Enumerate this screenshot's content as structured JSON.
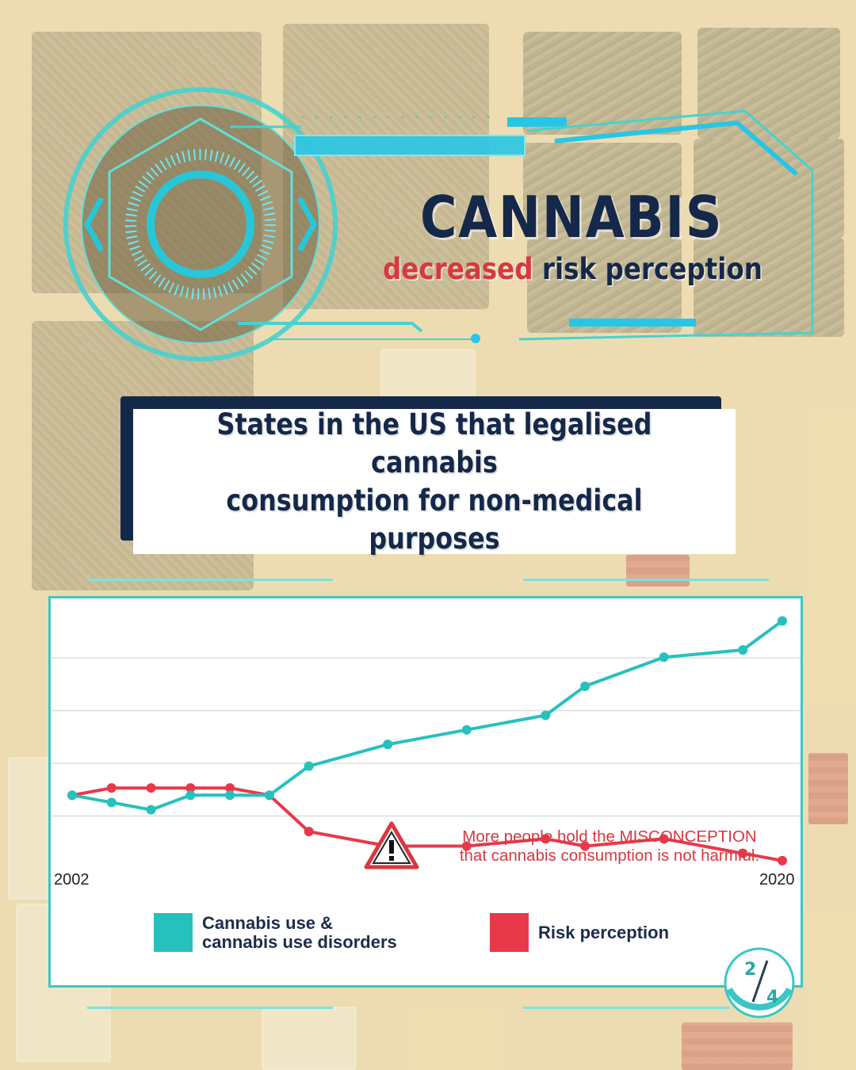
{
  "header": {
    "title": "CANNABIS",
    "subtitle_highlight": "decreased",
    "subtitle_rest": " risk perception"
  },
  "heading": {
    "text": "States in the US that legalised cannabis\nconsumption for non-medical purposes"
  },
  "chart_data": {
    "type": "line",
    "x": [
      2002,
      2003,
      2004,
      2005,
      2006,
      2007,
      2008,
      2010,
      2012,
      2014,
      2015,
      2017,
      2019,
      2020
    ],
    "series": [
      {
        "name": "Cannabis use & cannabis use disorders",
        "color": "#27c1bd",
        "values": [
          0,
          -0.1,
          -0.2,
          0,
          0,
          0,
          0.4,
          0.7,
          0.9,
          1.1,
          1.5,
          1.9,
          2.0,
          2.4
        ]
      },
      {
        "name": "Risk perception",
        "color": "#e8394a",
        "values": [
          0,
          0.1,
          0.1,
          0.1,
          0.1,
          0,
          -0.5,
          -0.7,
          -0.7,
          -0.6,
          -0.7,
          -0.6,
          -0.8,
          -0.9
        ]
      }
    ],
    "x_tick_labels": [
      "2002",
      "2020"
    ],
    "ylim": [
      -1.0,
      2.6
    ],
    "grid": true,
    "legend": "bottom",
    "annotation": {
      "line1": "More people hold the MISCONCEPTION",
      "line2": "that cannabis consumption is not harmful.",
      "icon": "warning-triangle-icon"
    }
  },
  "legend": {
    "cannabis_label": "Cannabis use &\ncannabis use disorders",
    "risk_label": "Risk perception",
    "cannabis_color": "#27c1bd",
    "risk_color": "#e8394a"
  },
  "page_indicator": {
    "current": "2",
    "total": "4"
  }
}
